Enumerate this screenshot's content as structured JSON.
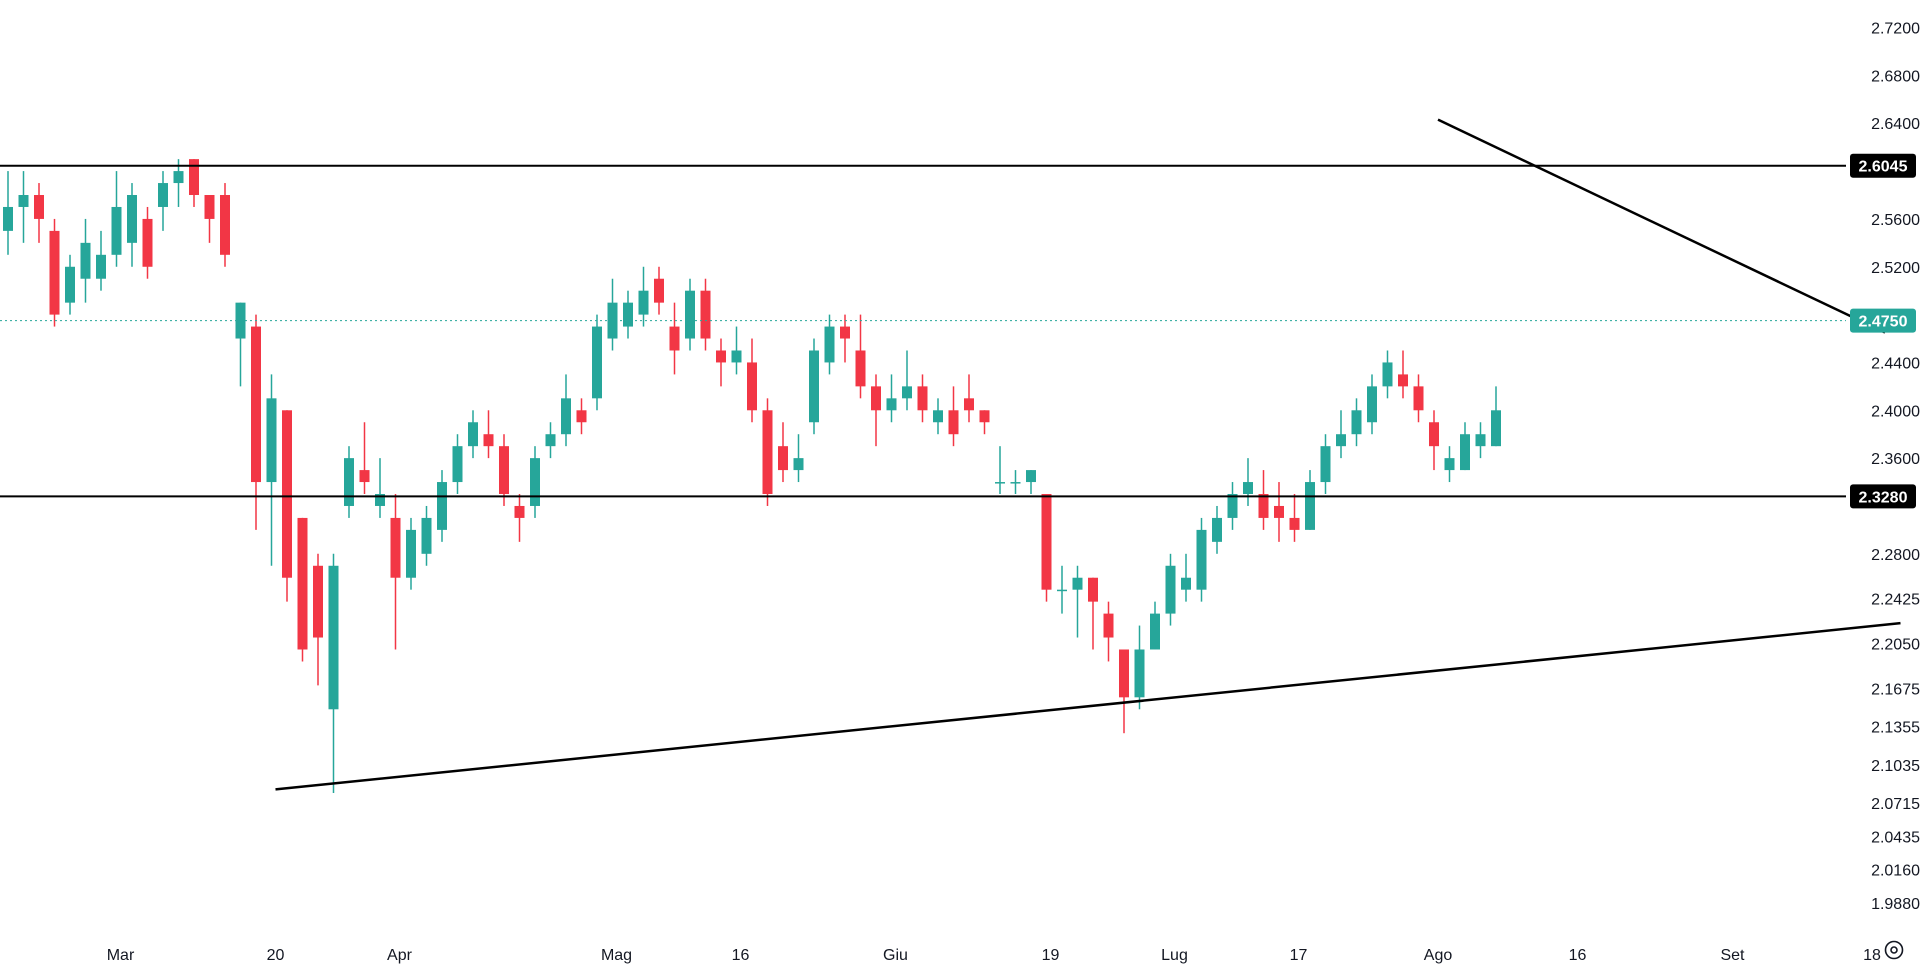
{
  "colors": {
    "up": "#26a69a",
    "down": "#f23645",
    "background": "#ffffff",
    "line": "#000000",
    "current_price_tag": "#26a69a",
    "level_tag": "#000000",
    "grid": "#f0f3fa",
    "text": "#131722"
  },
  "icons": {
    "settings": "settings-gear-icon"
  },
  "chart_data": {
    "type": "candlestick",
    "title": "",
    "xlabel": "",
    "ylabel": "",
    "ylim": [
      1.978,
      2.728
    ],
    "grid": false,
    "current_price": 2.475,
    "current_price_label": "2.4750",
    "y_ticks": [
      {
        "value": 2.72,
        "label": "2.7200"
      },
      {
        "value": 2.68,
        "label": "2.6800"
      },
      {
        "value": 2.64,
        "label": "2.6400"
      },
      {
        "value": 2.56,
        "label": "2.5600"
      },
      {
        "value": 2.52,
        "label": "2.5200"
      },
      {
        "value": 2.44,
        "label": "2.4400"
      },
      {
        "value": 2.4,
        "label": "2.4000"
      },
      {
        "value": 2.36,
        "label": "2.3600"
      },
      {
        "value": 2.28,
        "label": "2.2800"
      },
      {
        "value": 2.2425,
        "label": "2.2425"
      },
      {
        "value": 2.205,
        "label": "2.2050"
      },
      {
        "value": 2.1675,
        "label": "2.1675"
      },
      {
        "value": 2.1355,
        "label": "2.1355"
      },
      {
        "value": 2.1035,
        "label": "2.1035"
      },
      {
        "value": 2.0715,
        "label": "2.0715"
      },
      {
        "value": 2.0435,
        "label": "2.0435"
      },
      {
        "value": 2.016,
        "label": "2.0160"
      },
      {
        "value": 1.988,
        "label": "1.9880"
      }
    ],
    "x_ticks": [
      {
        "index": 7,
        "label": "Mar"
      },
      {
        "index": 17,
        "label": "20"
      },
      {
        "index": 25,
        "label": "Apr"
      },
      {
        "index": 39,
        "label": "Mag"
      },
      {
        "index": 47,
        "label": "16"
      },
      {
        "index": 57,
        "label": "Giu"
      },
      {
        "index": 67,
        "label": "19"
      },
      {
        "index": 75,
        "label": "Lug"
      },
      {
        "index": 83,
        "label": "17"
      },
      {
        "index": 92,
        "label": "Ago"
      },
      {
        "index": 101,
        "label": "16"
      },
      {
        "index": 111,
        "label": "Set"
      },
      {
        "index": 120,
        "label": "18"
      }
    ],
    "horizontal_levels": [
      {
        "value": 2.6045,
        "label": "2.6045"
      },
      {
        "value": 2.328,
        "label": "2.3280"
      }
    ],
    "trendlines": [
      {
        "name": "support",
        "from": {
          "index": 17,
          "value": 2.083
        },
        "to": {
          "index": 121,
          "value": 2.222
        }
      },
      {
        "name": "resistance",
        "from": {
          "index": 92,
          "value": 2.643
        },
        "to": {
          "index": 120,
          "value": 2.465
        }
      }
    ],
    "candles": [
      [
        2.55,
        2.57,
        2.6,
        2.53
      ],
      [
        2.57,
        2.58,
        2.6,
        2.54
      ],
      [
        2.58,
        2.56,
        2.59,
        2.54
      ],
      [
        2.55,
        2.48,
        2.56,
        2.47
      ],
      [
        2.49,
        2.52,
        2.53,
        2.48
      ],
      [
        2.51,
        2.54,
        2.56,
        2.49
      ],
      [
        2.51,
        2.53,
        2.55,
        2.5
      ],
      [
        2.53,
        2.57,
        2.6,
        2.52
      ],
      [
        2.54,
        2.58,
        2.59,
        2.52
      ],
      [
        2.56,
        2.52,
        2.57,
        2.51
      ],
      [
        2.57,
        2.59,
        2.6,
        2.55
      ],
      [
        2.59,
        2.6,
        2.61,
        2.57
      ],
      [
        2.61,
        2.58,
        2.61,
        2.57
      ],
      [
        2.58,
        2.56,
        2.58,
        2.54
      ],
      [
        2.58,
        2.53,
        2.59,
        2.52
      ],
      [
        2.46,
        2.49,
        2.49,
        2.42
      ],
      [
        2.47,
        2.34,
        2.48,
        2.3
      ],
      [
        2.34,
        2.41,
        2.43,
        2.27
      ],
      [
        2.4,
        2.26,
        2.4,
        2.24
      ],
      [
        2.31,
        2.2,
        2.31,
        2.19
      ],
      [
        2.27,
        2.21,
        2.28,
        2.17
      ],
      [
        2.15,
        2.27,
        2.28,
        2.08
      ],
      [
        2.32,
        2.36,
        2.37,
        2.31
      ],
      [
        2.35,
        2.34,
        2.39,
        2.33
      ],
      [
        2.32,
        2.33,
        2.36,
        2.31
      ],
      [
        2.31,
        2.26,
        2.33,
        2.2
      ],
      [
        2.26,
        2.3,
        2.31,
        2.25
      ],
      [
        2.28,
        2.31,
        2.32,
        2.27
      ],
      [
        2.3,
        2.34,
        2.35,
        2.29
      ],
      [
        2.34,
        2.37,
        2.38,
        2.33
      ],
      [
        2.37,
        2.39,
        2.4,
        2.36
      ],
      [
        2.38,
        2.37,
        2.4,
        2.36
      ],
      [
        2.37,
        2.33,
        2.38,
        2.32
      ],
      [
        2.32,
        2.31,
        2.33,
        2.29
      ],
      [
        2.32,
        2.36,
        2.37,
        2.31
      ],
      [
        2.37,
        2.38,
        2.39,
        2.36
      ],
      [
        2.38,
        2.41,
        2.43,
        2.37
      ],
      [
        2.4,
        2.39,
        2.41,
        2.38
      ],
      [
        2.41,
        2.47,
        2.48,
        2.4
      ],
      [
        2.46,
        2.49,
        2.51,
        2.45
      ],
      [
        2.47,
        2.49,
        2.5,
        2.46
      ],
      [
        2.48,
        2.5,
        2.52,
        2.47
      ],
      [
        2.51,
        2.49,
        2.52,
        2.48
      ],
      [
        2.47,
        2.45,
        2.49,
        2.43
      ],
      [
        2.46,
        2.5,
        2.51,
        2.45
      ],
      [
        2.5,
        2.46,
        2.51,
        2.45
      ],
      [
        2.45,
        2.44,
        2.46,
        2.42
      ],
      [
        2.44,
        2.45,
        2.47,
        2.43
      ],
      [
        2.44,
        2.4,
        2.46,
        2.39
      ],
      [
        2.4,
        2.33,
        2.41,
        2.32
      ],
      [
        2.37,
        2.35,
        2.39,
        2.34
      ],
      [
        2.35,
        2.36,
        2.38,
        2.34
      ],
      [
        2.39,
        2.45,
        2.46,
        2.38
      ],
      [
        2.44,
        2.47,
        2.48,
        2.43
      ],
      [
        2.47,
        2.46,
        2.48,
        2.44
      ],
      [
        2.45,
        2.42,
        2.48,
        2.41
      ],
      [
        2.42,
        2.4,
        2.43,
        2.37
      ],
      [
        2.4,
        2.41,
        2.43,
        2.39
      ],
      [
        2.41,
        2.42,
        2.45,
        2.4
      ],
      [
        2.42,
        2.4,
        2.43,
        2.39
      ],
      [
        2.39,
        2.4,
        2.41,
        2.38
      ],
      [
        2.4,
        2.38,
        2.42,
        2.37
      ],
      [
        2.41,
        2.4,
        2.43,
        2.39
      ],
      [
        2.4,
        2.39,
        2.4,
        2.38
      ],
      [
        2.34,
        2.34,
        2.37,
        2.33
      ],
      [
        2.34,
        2.34,
        2.35,
        2.33
      ],
      [
        2.34,
        2.35,
        2.35,
        2.33
      ],
      [
        2.33,
        2.25,
        2.33,
        2.24
      ],
      [
        2.25,
        2.25,
        2.27,
        2.23
      ],
      [
        2.25,
        2.26,
        2.27,
        2.21
      ],
      [
        2.26,
        2.24,
        2.26,
        2.2
      ],
      [
        2.23,
        2.21,
        2.24,
        2.19
      ],
      [
        2.2,
        2.16,
        2.2,
        2.13
      ],
      [
        2.16,
        2.2,
        2.22,
        2.15
      ],
      [
        2.2,
        2.23,
        2.24,
        2.2
      ],
      [
        2.23,
        2.27,
        2.28,
        2.22
      ],
      [
        2.25,
        2.26,
        2.28,
        2.24
      ],
      [
        2.25,
        2.3,
        2.31,
        2.24
      ],
      [
        2.29,
        2.31,
        2.32,
        2.28
      ],
      [
        2.31,
        2.33,
        2.34,
        2.3
      ],
      [
        2.33,
        2.34,
        2.36,
        2.32
      ],
      [
        2.33,
        2.31,
        2.35,
        2.3
      ],
      [
        2.32,
        2.31,
        2.34,
        2.29
      ],
      [
        2.31,
        2.3,
        2.33,
        2.29
      ],
      [
        2.3,
        2.34,
        2.35,
        2.3
      ],
      [
        2.34,
        2.37,
        2.38,
        2.33
      ],
      [
        2.37,
        2.38,
        2.4,
        2.36
      ],
      [
        2.38,
        2.4,
        2.41,
        2.37
      ],
      [
        2.39,
        2.42,
        2.43,
        2.38
      ],
      [
        2.42,
        2.44,
        2.45,
        2.41
      ],
      [
        2.43,
        2.42,
        2.45,
        2.41
      ],
      [
        2.42,
        2.4,
        2.43,
        2.39
      ],
      [
        2.39,
        2.37,
        2.4,
        2.35
      ],
      [
        2.35,
        2.36,
        2.37,
        2.34
      ],
      [
        2.35,
        2.38,
        2.39,
        2.35
      ],
      [
        2.37,
        2.38,
        2.39,
        2.36
      ],
      [
        2.37,
        2.4,
        2.42,
        2.37
      ]
    ]
  }
}
